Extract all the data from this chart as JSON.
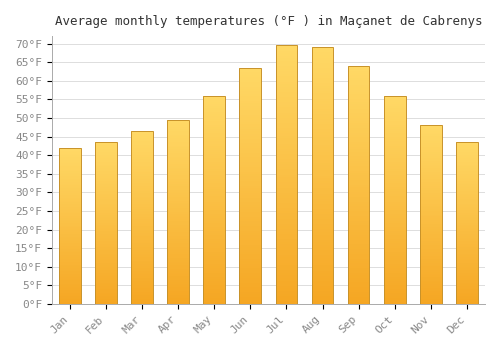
{
  "title": "Average monthly temperatures (°F ) in Maçanet de Cabrenys",
  "months": [
    "Jan",
    "Feb",
    "Mar",
    "Apr",
    "May",
    "Jun",
    "Jul",
    "Aug",
    "Sep",
    "Oct",
    "Nov",
    "Dec"
  ],
  "values": [
    42,
    43.5,
    46.5,
    49.5,
    56,
    63.5,
    69.5,
    69,
    64,
    56,
    48,
    43.5
  ],
  "bar_color_bottom": "#F5A623",
  "bar_color_top": "#FFD966",
  "bar_edge_color": "#C8922A",
  "background_color": "#FFFFFF",
  "grid_color": "#DDDDDD",
  "ylim": [
    0,
    72
  ],
  "yticks": [
    0,
    5,
    10,
    15,
    20,
    25,
    30,
    35,
    40,
    45,
    50,
    55,
    60,
    65,
    70
  ],
  "ytick_labels": [
    "0°F",
    "5°F",
    "10°F",
    "15°F",
    "20°F",
    "25°F",
    "30°F",
    "35°F",
    "40°F",
    "45°F",
    "50°F",
    "55°F",
    "60°F",
    "65°F",
    "70°F"
  ],
  "tick_font_size": 8,
  "title_font_size": 9,
  "title_color": "#333333",
  "tick_color": "#888888",
  "spine_color": "#AAAAAA",
  "bar_width": 0.6,
  "n_gradient_steps": 100
}
